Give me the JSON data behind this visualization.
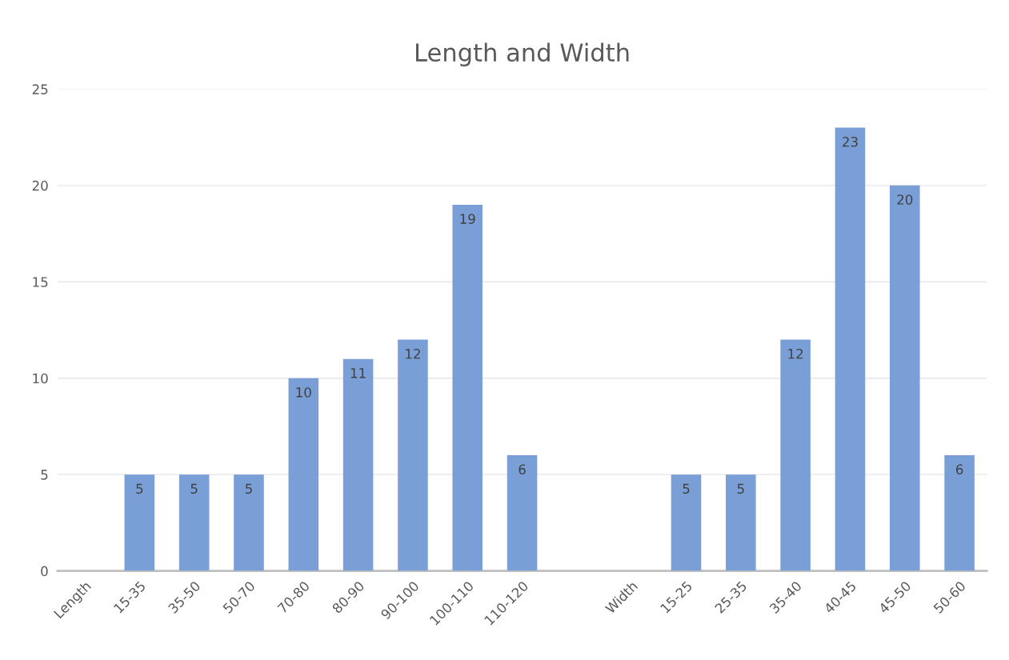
{
  "chart_data": {
    "type": "bar",
    "title": "Length and Width",
    "categories": [
      "Length",
      "15-35",
      "35-50",
      "50-70",
      "70-80",
      "80-90",
      "90-100",
      "100-110",
      "110-120",
      null,
      "Width",
      "15-25",
      "25-35",
      "35-40",
      "40-45",
      "45-50",
      "50-60"
    ],
    "values": [
      null,
      5,
      5,
      5,
      10,
      11,
      12,
      19,
      6,
      null,
      null,
      5,
      5,
      12,
      23,
      20,
      6
    ],
    "color": "#7a9fd7",
    "ylim": [
      0,
      25
    ],
    "yticks": [
      0,
      5,
      10,
      15,
      20,
      25
    ],
    "grid": "y",
    "data_labels": true,
    "legend": false
  }
}
